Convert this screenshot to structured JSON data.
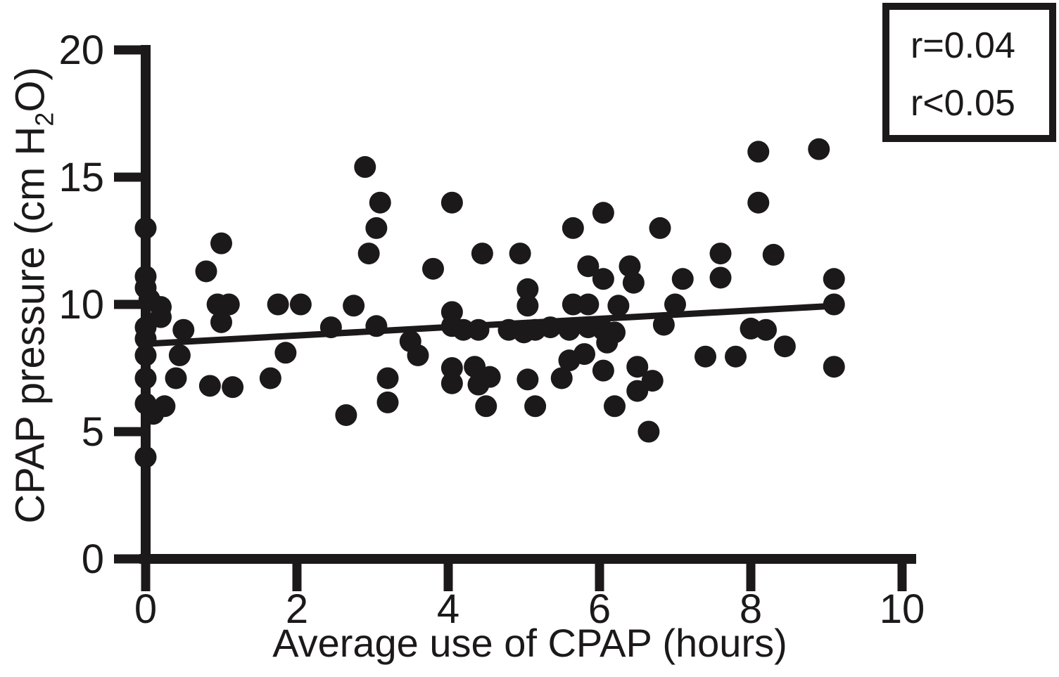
{
  "figure": {
    "background": "#ffffff",
    "ink_color": "#1c191a"
  },
  "legend": {
    "line1": "r=0.04",
    "line2": "r<0.05"
  },
  "chart_data": {
    "type": "scatter",
    "title": "",
    "xlabel": "Average use of CPAP (hours)",
    "ylabel": "CPAP pressure (cm H2O)",
    "ylabel_parts": {
      "pre": "CPAP pressure (cm H",
      "sub": "2",
      "post": "O)"
    },
    "xlim": [
      0,
      10
    ],
    "ylim": [
      0,
      20
    ],
    "x_ticks": [
      0,
      2,
      4,
      6,
      8,
      10
    ],
    "y_ticks": [
      0,
      5,
      10,
      15,
      20
    ],
    "grid": false,
    "legend_position": "top-right",
    "annotations": [
      "r=0.04",
      "r<0.05"
    ],
    "marker": {
      "shape": "circle",
      "color": "#1c191a"
    },
    "points": [
      [
        0,
        13
      ],
      [
        0,
        11.1
      ],
      [
        0,
        10.65
      ],
      [
        0.05,
        10.2
      ],
      [
        0.2,
        9.9
      ],
      [
        0.2,
        9.5
      ],
      [
        0,
        9.1
      ],
      [
        0,
        8.65
      ],
      [
        0,
        8
      ],
      [
        0,
        7.1
      ],
      [
        0,
        6.1
      ],
      [
        0.25,
        6
      ],
      [
        0.1,
        5.7
      ],
      [
        0,
        4
      ],
      [
        0.5,
        9
      ],
      [
        0.45,
        8
      ],
      [
        0.4,
        7.1
      ],
      [
        0.8,
        11.3
      ],
      [
        1,
        12.4
      ],
      [
        0.95,
        10
      ],
      [
        1.1,
        10
      ],
      [
        1,
        9.3
      ],
      [
        0.85,
        6.8
      ],
      [
        1.15,
        6.75
      ],
      [
        1.65,
        7.1
      ],
      [
        1.85,
        8.1
      ],
      [
        1.75,
        10
      ],
      [
        2.05,
        10
      ],
      [
        2.45,
        9.1
      ],
      [
        2.75,
        9.95
      ],
      [
        2.65,
        5.65
      ],
      [
        2.9,
        15.4
      ],
      [
        3.05,
        13
      ],
      [
        2.95,
        12
      ],
      [
        3.1,
        14
      ],
      [
        3.05,
        9.15
      ],
      [
        3.2,
        7.1
      ],
      [
        3.2,
        6.15
      ],
      [
        3.5,
        8.55
      ],
      [
        3.6,
        8
      ],
      [
        3.8,
        11.4
      ],
      [
        4.05,
        14
      ],
      [
        4.05,
        9.7
      ],
      [
        4.05,
        9.15
      ],
      [
        4.05,
        7.5
      ],
      [
        4.05,
        6.9
      ],
      [
        4.2,
        9
      ],
      [
        4.4,
        9
      ],
      [
        4.45,
        12
      ],
      [
        4.35,
        7.55
      ],
      [
        4.55,
        7.15
      ],
      [
        4.4,
        6.85
      ],
      [
        4.5,
        6
      ],
      [
        4.8,
        9
      ],
      [
        4.95,
        12
      ],
      [
        5,
        8.9
      ],
      [
        5.15,
        9
      ],
      [
        5.05,
        10.6
      ],
      [
        5.05,
        9.95
      ],
      [
        5.05,
        7.05
      ],
      [
        5.15,
        6
      ],
      [
        5.35,
        9.1
      ],
      [
        5.5,
        7.1
      ],
      [
        5.6,
        9
      ],
      [
        5.6,
        7.8
      ],
      [
        5.8,
        8.05
      ],
      [
        5.65,
        13
      ],
      [
        5.65,
        10
      ],
      [
        5.85,
        11.5
      ],
      [
        5.85,
        10
      ],
      [
        5.85,
        9.1
      ],
      [
        6.05,
        11
      ],
      [
        6.05,
        9
      ],
      [
        6.05,
        13.6
      ],
      [
        6.2,
        8.9
      ],
      [
        6.25,
        9.95
      ],
      [
        6.1,
        8.5
      ],
      [
        6.05,
        7.4
      ],
      [
        6.2,
        6
      ],
      [
        6.4,
        11.5
      ],
      [
        6.45,
        10.85
      ],
      [
        6.5,
        7.55
      ],
      [
        6.7,
        7
      ],
      [
        6.5,
        6.6
      ],
      [
        6.65,
        5
      ],
      [
        6.8,
        13
      ],
      [
        6.85,
        9.2
      ],
      [
        7,
        10
      ],
      [
        7.1,
        11
      ],
      [
        7.6,
        12
      ],
      [
        7.6,
        11.05
      ],
      [
        7.4,
        7.95
      ],
      [
        7.8,
        7.95
      ],
      [
        8,
        9.05
      ],
      [
        8.2,
        9
      ],
      [
        8.1,
        16
      ],
      [
        8.1,
        14
      ],
      [
        8.3,
        11.95
      ],
      [
        8.45,
        8.35
      ],
      [
        8.9,
        16.1
      ],
      [
        9.1,
        11
      ],
      [
        9.1,
        10
      ],
      [
        9.1,
        7.55
      ]
    ],
    "trendline": {
      "x": [
        0,
        9.15
      ],
      "y": [
        8.45,
        9.95
      ]
    }
  }
}
